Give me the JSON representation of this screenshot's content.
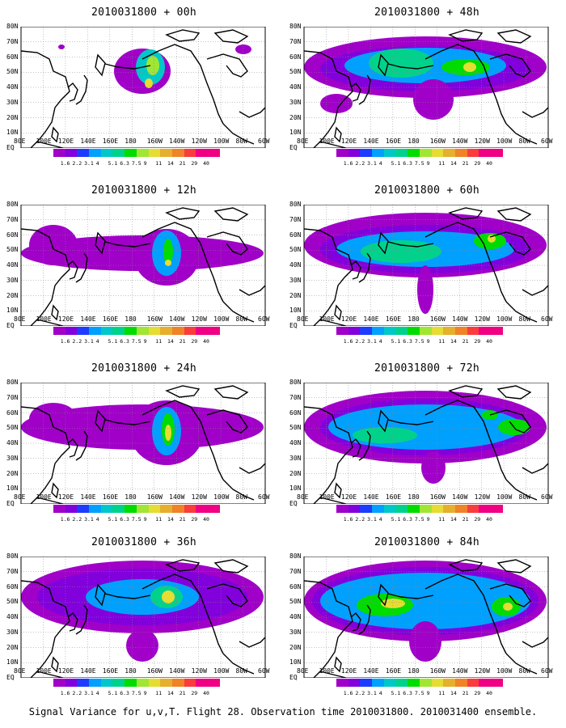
{
  "panels": [
    {
      "title": "2010031800 + 00h",
      "col": 0,
      "row": 0
    },
    {
      "title": "2010031800 + 48h",
      "col": 1,
      "row": 0
    },
    {
      "title": "2010031800 + 12h",
      "col": 0,
      "row": 1
    },
    {
      "title": "2010031800 + 60h",
      "col": 1,
      "row": 1
    },
    {
      "title": "2010031800 + 24h",
      "col": 0,
      "row": 2
    },
    {
      "title": "2010031800 + 72h",
      "col": 1,
      "row": 2
    },
    {
      "title": "2010031800 + 36h",
      "col": 0,
      "row": 3
    },
    {
      "title": "2010031800 + 84h",
      "col": 1,
      "row": 3
    }
  ],
  "lat_labels": [
    "80N",
    "70N",
    "60N",
    "50N",
    "40N",
    "30N",
    "20N",
    "10N",
    "EQ"
  ],
  "lon_labels": [
    "80E",
    "100E",
    "120E",
    "140E",
    "160E",
    "180",
    "160W",
    "140W",
    "120W",
    "100W",
    "80W",
    "60W"
  ],
  "colorbar": {
    "labels": [
      "1.6",
      "2.2",
      "3.1",
      "4",
      "5.1",
      "6.3",
      "7.5",
      "9",
      "11",
      "14",
      "21",
      "29",
      "40"
    ],
    "colors": [
      "#a000c8",
      "#8200dc",
      "#1e3cff",
      "#00a0ff",
      "#00c8c8",
      "#00d28c",
      "#00dc00",
      "#a0e632",
      "#e6dc32",
      "#e6af2d",
      "#f08228",
      "#fa3c3c",
      "#f00082"
    ]
  },
  "footer": "Signal Variance for u,v,T. Flight 28. Observation time 2010031800. 2010031400 ensemble."
}
